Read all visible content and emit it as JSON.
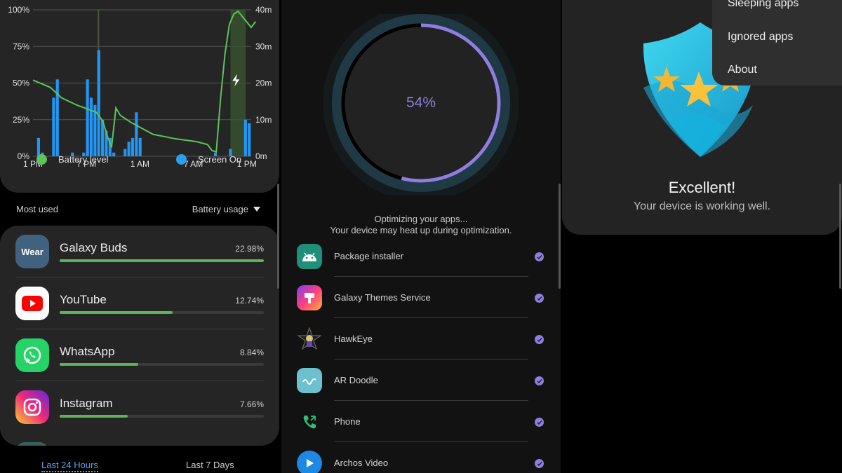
{
  "battery": {
    "chart_data": {
      "type": "bar",
      "x_ticks": [
        "1 PM",
        "7 PM",
        "1 AM",
        "7 AM",
        "1 PM"
      ],
      "y_left_ticks": [
        "0%",
        "25%",
        "50%",
        "75%",
        "100%"
      ],
      "y_right_ticks": [
        "0m",
        "10m",
        "20m",
        "30m",
        "40m"
      ],
      "ylim_left": [
        0,
        100
      ],
      "ylim_right": [
        0,
        40
      ],
      "series": [
        {
          "name": "Screen On",
          "color": "#2196f3",
          "values": [
            0,
            5,
            1,
            0,
            0,
            16,
            21,
            0,
            0,
            0,
            1,
            0,
            0,
            1,
            21,
            16,
            14,
            29,
            10,
            7,
            5,
            1,
            0,
            0,
            2,
            4,
            5,
            12,
            5,
            0,
            0,
            0,
            0,
            0,
            0,
            0,
            0,
            0,
            0,
            0,
            0,
            0,
            0,
            0,
            0,
            0,
            0,
            0,
            1,
            0,
            0,
            0,
            2,
            0,
            0,
            0,
            10,
            9
          ]
        },
        {
          "name": "Battery level",
          "color": "#5cc45a",
          "x": [
            0,
            8,
            13,
            20,
            29,
            32,
            34,
            36,
            38,
            40,
            45,
            55,
            65,
            75,
            80,
            82,
            84,
            86,
            88,
            90,
            92,
            94,
            100,
            102
          ],
          "values": [
            52,
            47,
            40,
            35,
            30,
            24,
            14,
            6,
            33,
            28,
            23,
            15,
            12,
            10,
            8,
            4,
            3,
            40,
            70,
            90,
            97,
            99,
            88,
            92
          ]
        }
      ],
      "charging_marker": "lightning-icon",
      "grid": true,
      "legend_position": "bottom"
    },
    "legend": {
      "battery_label": "Battery level",
      "screen_label": "Screen On"
    },
    "section": {
      "most_used": "Most used",
      "sort_label": "Battery usage"
    },
    "apps": [
      {
        "name": "Galaxy Buds",
        "percent": "22.98%",
        "fraction": 1.0,
        "icon": "wear-icon",
        "icon_text": "Wear",
        "color": "#41627e"
      },
      {
        "name": "YouTube",
        "percent": "12.74%",
        "fraction": 0.554,
        "icon": "youtube-icon",
        "color": "#ff0000"
      },
      {
        "name": "WhatsApp",
        "percent": "8.84%",
        "fraction": 0.385,
        "icon": "whatsapp-icon",
        "color": "#25d366"
      },
      {
        "name": "Instagram",
        "percent": "7.66%",
        "fraction": 0.333,
        "icon": "instagram-icon",
        "color": "#d6249f"
      }
    ],
    "tabs": {
      "last24": "Last 24 Hours",
      "last7": "Last 7 Days"
    }
  },
  "optimize": {
    "progress_text": "54%",
    "progress_fraction": 0.54,
    "message_line1": "Optimizing your apps...",
    "message_line2": "Your device may heat up during optimization.",
    "accent": "#8f7ee0",
    "apps": [
      {
        "name": "Package installer",
        "icon": "android-icon",
        "color": "#3ddc84",
        "done": true
      },
      {
        "name": "Galaxy Themes Service",
        "icon": "themes-icon",
        "color": "#c13cc9",
        "done": true
      },
      {
        "name": "HawkEye",
        "icon": "hawkeye-icon",
        "color": "#6d5a3a",
        "done": true
      },
      {
        "name": "AR Doodle",
        "icon": "ar-doodle-icon",
        "color": "#5fb4c4",
        "done": true
      },
      {
        "name": "Phone",
        "icon": "phone-icon",
        "color": "#2fbf71",
        "done": true
      },
      {
        "name": "Archos Video",
        "icon": "play-icon",
        "color": "#1e88e5",
        "done": true
      }
    ]
  },
  "status": {
    "title": "Excellent!",
    "subtitle": "Your device is working well.",
    "shield_icon": "shield-stars-icon",
    "menu": [
      "Sleeping apps",
      "Ignored apps",
      "About"
    ]
  }
}
